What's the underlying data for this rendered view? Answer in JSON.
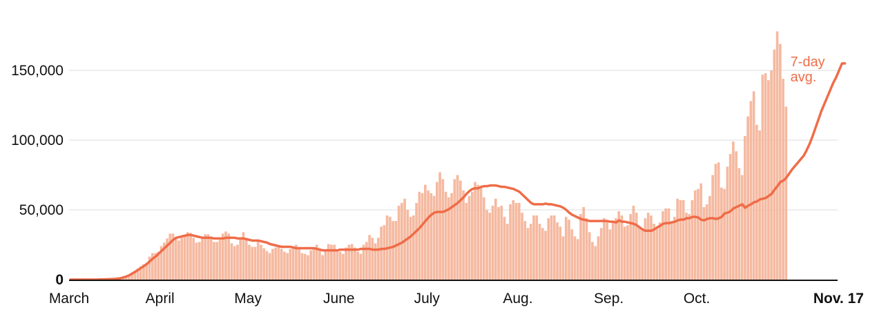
{
  "chart_data": {
    "type": "bar",
    "grid": true,
    "x_range": [
      "2020-03-01",
      "2020-11-17"
    ],
    "ylim": [
      0,
      180000
    ],
    "y_ticks": [
      {
        "value": 0,
        "label": "0"
      },
      {
        "value": 50000,
        "label": "50,000"
      },
      {
        "value": 100000,
        "label": "100,000"
      },
      {
        "value": 150000,
        "label": "150,000"
      }
    ],
    "x_ticks": [
      {
        "date": "2020-03-01",
        "label": "March"
      },
      {
        "date": "2020-04-01",
        "label": "April"
      },
      {
        "date": "2020-05-01",
        "label": "May"
      },
      {
        "date": "2020-06-01",
        "label": "June"
      },
      {
        "date": "2020-07-01",
        "label": "July"
      },
      {
        "date": "2020-08-01",
        "label": "Aug."
      },
      {
        "date": "2020-09-01",
        "label": "Sep."
      },
      {
        "date": "2020-10-01",
        "label": "Oct."
      },
      {
        "date": "2020-11-17",
        "label": "Nov. 17"
      }
    ],
    "series": [
      {
        "type": "bar",
        "color": "#f5b9a0",
        "values": [
          0,
          0,
          0,
          0,
          0,
          0,
          0,
          0,
          0,
          0,
          100,
          200,
          200,
          300,
          400,
          500,
          700,
          1000,
          1500,
          2200,
          3500,
          5000,
          6500,
          8000,
          9500,
          11000,
          12000,
          16500,
          19000,
          19000,
          20000,
          24000,
          26500,
          29500,
          33000,
          33000,
          30000,
          28000,
          30000,
          32000,
          34000,
          33500,
          30000,
          26500,
          27000,
          29500,
          32500,
          32500,
          30000,
          27000,
          27000,
          28500,
          33000,
          34500,
          33000,
          26000,
          24000,
          25000,
          30000,
          34000,
          30000,
          25000,
          23500,
          23500,
          27000,
          25000,
          22500,
          20500,
          19000,
          22000,
          23000,
          24000,
          22000,
          20000,
          19000,
          22000,
          24000,
          25000,
          22000,
          19000,
          18500,
          17500,
          21000,
          22000,
          25000,
          21000,
          17500,
          21000,
          25500,
          25000,
          25000,
          21000,
          20000,
          18500,
          23000,
          25000,
          25500,
          23000,
          20000,
          18500,
          25000,
          27000,
          32000,
          30000,
          26000,
          30000,
          38000,
          39000,
          46000,
          45000,
          42000,
          42000,
          53000,
          55000,
          58000,
          50000,
          45000,
          46000,
          55000,
          63000,
          62000,
          68000,
          64000,
          62000,
          60000,
          70000,
          77000,
          72000,
          63000,
          59000,
          62000,
          72000,
          75000,
          71000,
          64000,
          55000,
          60000,
          63000,
          70000,
          68000,
          66000,
          59000,
          50000,
          48000,
          53000,
          58000,
          52000,
          53000,
          45000,
          40000,
          54000,
          57000,
          55000,
          55000,
          48000,
          42000,
          37000,
          40000,
          46000,
          46000,
          40000,
          37000,
          35000,
          44000,
          46000,
          46000,
          41000,
          38000,
          31000,
          45000,
          43000,
          36000,
          31000,
          29000,
          47000,
          52000,
          44000,
          34000,
          27000,
          24000,
          31000,
          37000,
          44000,
          42000,
          36000,
          41000,
          44000,
          49000,
          46000,
          38000,
          39000,
          47000,
          53000,
          48000,
          38000,
          37000,
          44000,
          48000,
          46000,
          40000,
          37000,
          41000,
          49000,
          51000,
          51000,
          42000,
          45000,
          58000,
          57000,
          57000,
          48000,
          47000,
          57000,
          64000,
          65000,
          69000,
          52000,
          54000,
          60000,
          75000,
          83000,
          84000,
          66000,
          65000,
          81000,
          90000,
          99000,
          92000,
          80000,
          75000,
          103000,
          117000,
          128000,
          135000,
          111000,
          107000,
          147000,
          148000,
          143000,
          150000,
          165000,
          178000,
          169000,
          144000,
          124000
        ]
      },
      {
        "type": "line",
        "color": "#ef6c48",
        "values": [
          0,
          0,
          0,
          0,
          0,
          0,
          0,
          0,
          0,
          0,
          100,
          200,
          200,
          300,
          400,
          500,
          700,
          1000,
          1500,
          2200,
          3100,
          4300,
          5500,
          6900,
          8300,
          9700,
          11200,
          13000,
          15000,
          16500,
          18500,
          20500,
          22500,
          24500,
          26500,
          28500,
          30000,
          30500,
          31000,
          31500,
          32000,
          32000,
          31500,
          31000,
          30500,
          30000,
          30000,
          30000,
          30000,
          29500,
          29500,
          29500,
          29500,
          30000,
          30000,
          30000,
          30000,
          29500,
          29500,
          29500,
          29000,
          28500,
          28000,
          28000,
          28000,
          27500,
          27000,
          26500,
          25500,
          25000,
          24500,
          24000,
          23500,
          23500,
          23500,
          23500,
          23000,
          22500,
          22500,
          22500,
          22500,
          22500,
          22500,
          22500,
          22000,
          21500,
          21000,
          21000,
          21000,
          21000,
          21000,
          21000,
          21500,
          21500,
          21500,
          21500,
          21500,
          21500,
          21500,
          22000,
          22000,
          22000,
          22000,
          21500,
          21500,
          21500,
          22000,
          22000,
          22500,
          23000,
          23500,
          24500,
          25500,
          26500,
          28000,
          29500,
          31000,
          33000,
          35000,
          37000,
          39500,
          42000,
          44500,
          46500,
          48000,
          48500,
          48500,
          48500,
          49500,
          50500,
          52000,
          53500,
          55000,
          57000,
          59000,
          61500,
          63500,
          65000,
          65500,
          65500,
          66500,
          67000,
          67000,
          67500,
          67500,
          67500,
          67000,
          66500,
          66500,
          66000,
          65500,
          65000,
          64000,
          63000,
          61000,
          59000,
          57000,
          55000,
          54000,
          54000,
          54000,
          54000,
          54500,
          54000,
          54000,
          53500,
          53000,
          52500,
          51500,
          50000,
          48000,
          46500,
          45500,
          44500,
          43500,
          43000,
          42500,
          42000,
          42000,
          42000,
          42000,
          42000,
          42000,
          42000,
          41500,
          41500,
          41000,
          42500,
          41500,
          41500,
          41000,
          40500,
          40000,
          39000,
          37500,
          36000,
          35000,
          35000,
          35000,
          36000,
          37500,
          38500,
          40000,
          40500,
          40500,
          41000,
          41500,
          42500,
          43000,
          43000,
          44000,
          44000,
          45000,
          45000,
          44500,
          43000,
          42500,
          43500,
          44000,
          44000,
          43500,
          44000,
          45000,
          47500,
          48000,
          49000,
          51000,
          52000,
          53000,
          54000,
          51500,
          53000,
          54000,
          55500,
          56000,
          57500,
          58000,
          58500,
          60000,
          61500,
          64500,
          67000,
          70000,
          71000,
          73000,
          76000,
          79000,
          81500,
          84000,
          86500,
          89000,
          93000,
          97500,
          103000,
          109000,
          115000,
          121000,
          126000,
          131000,
          136000,
          141000,
          145000,
          150000,
          155000,
          155000
        ]
      }
    ],
    "annotations": [
      {
        "text": "7-day",
        "target": "series.1.last"
      },
      {
        "text": "avg.",
        "target": "series.1.last"
      }
    ]
  }
}
